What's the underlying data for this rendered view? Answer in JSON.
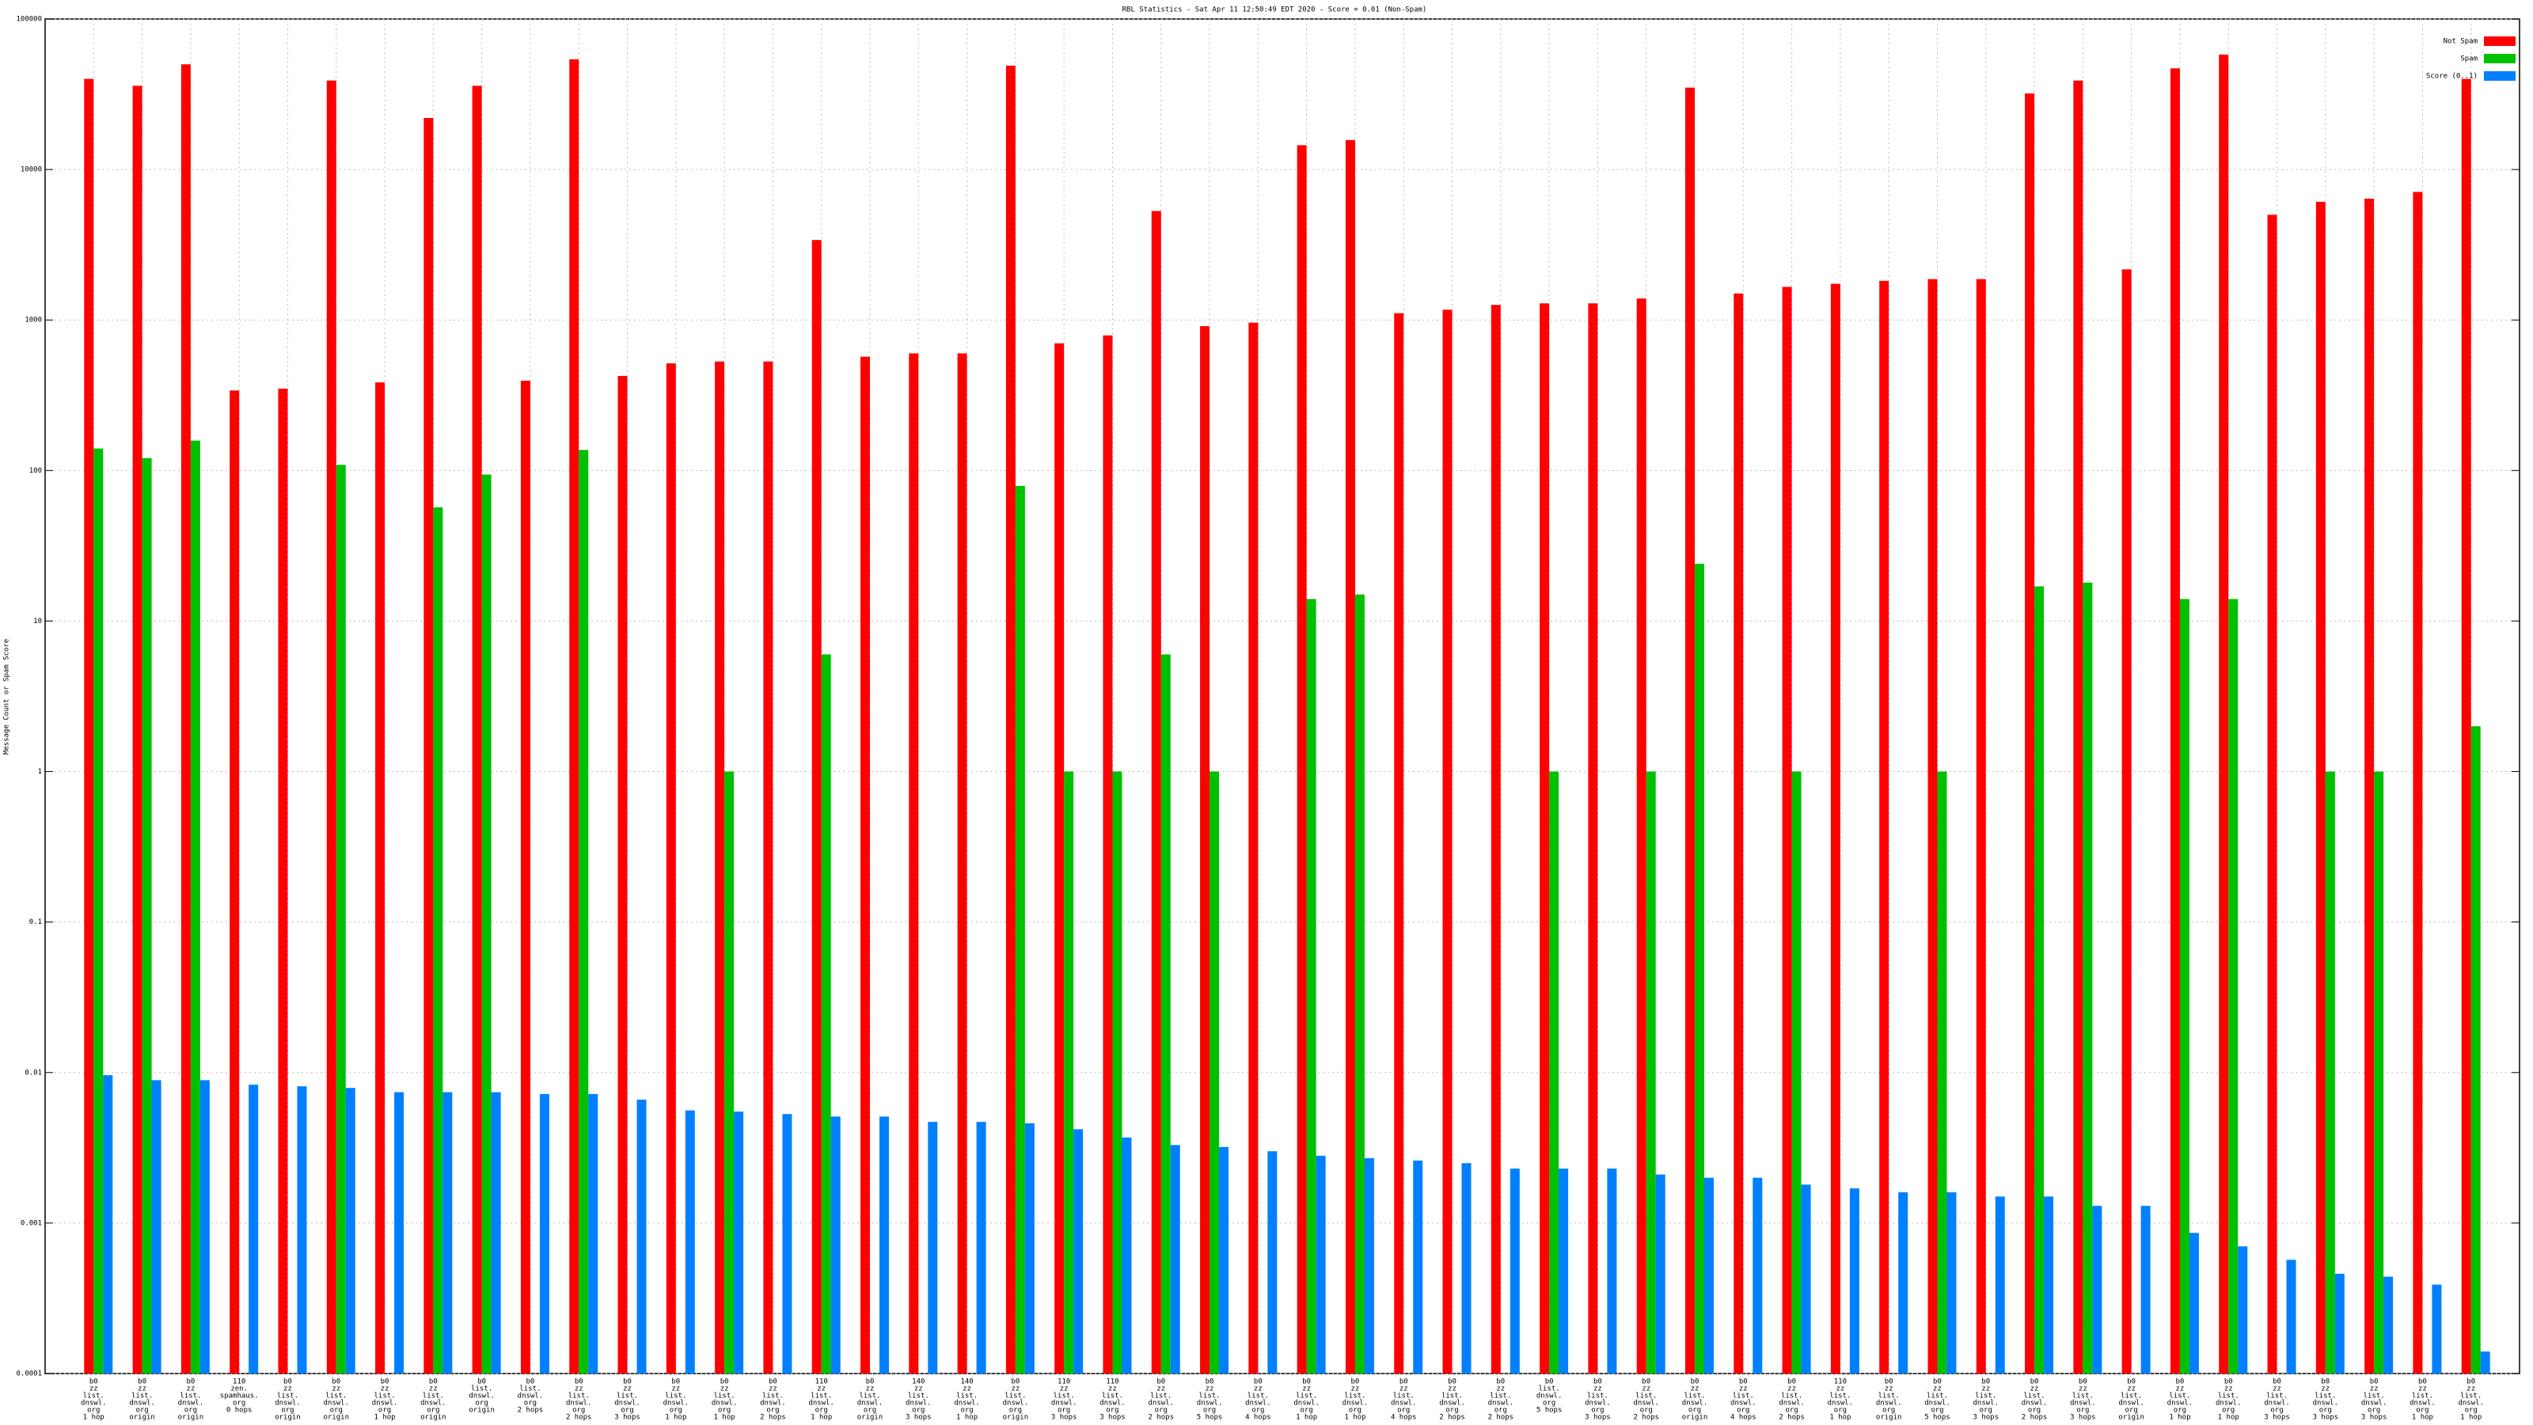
{
  "chart_data": {
    "type": "bar",
    "title": "RBL Statistics - Sat Apr 11 12:50:49 EDT 2020 - Score = 0.01 (Non-Spam)",
    "y_label": "Message Count or Spam Score",
    "log_scale": true,
    "grid": true,
    "legend": "top-right",
    "ylim": [
      0.0001,
      100000
    ],
    "yticks": [
      0.0001,
      0.001,
      0.01,
      0.1,
      1,
      10,
      100,
      1000,
      10000,
      100000
    ],
    "categories": [
      [
        "b0",
        "zz",
        "list.",
        "dnswl.",
        "org",
        "1 hop"
      ],
      [
        "b0",
        "zz",
        "list.",
        "dnswl.",
        "org",
        "origin"
      ],
      [
        "b0",
        "zz",
        "list.",
        "dnswl.",
        "org",
        "origin"
      ],
      [
        "110",
        "zen.",
        "spamhaus.",
        "org",
        "0 hops"
      ],
      [
        "b0",
        "zz",
        "list.",
        "dnswl.",
        "org",
        "origin"
      ],
      [
        "b0",
        "zz",
        "list.",
        "dnswl.",
        "org",
        "origin"
      ],
      [
        "b0",
        "zz",
        "list.",
        "dnswl.",
        "org",
        "1 hop"
      ],
      [
        "b0",
        "zz",
        "list.",
        "dnswl.",
        "org",
        "origin"
      ],
      [
        "b0",
        "list.",
        "dnswl.",
        "org",
        "origin"
      ],
      [
        "b0",
        "list.",
        "dnswl.",
        "org",
        "2 hops"
      ],
      [
        "b0",
        "zz",
        "list.",
        "dnswl.",
        "org",
        "2 hops"
      ],
      [
        "b0",
        "zz",
        "list.",
        "dnswl.",
        "org",
        "3 hops"
      ],
      [
        "b0",
        "zz",
        "list.",
        "dnswl.",
        "org",
        "1 hop"
      ],
      [
        "b0",
        "zz",
        "list.",
        "dnswl.",
        "org",
        "1 hop"
      ],
      [
        "b0",
        "zz",
        "list.",
        "dnswl.",
        "org",
        "2 hops"
      ],
      [
        "110",
        "zz",
        "list.",
        "dnswl.",
        "org",
        "1 hop"
      ],
      [
        "b0",
        "zz",
        "list.",
        "dnswl.",
        "org",
        "origin"
      ],
      [
        "140",
        "zz",
        "list.",
        "dnswl.",
        "org",
        "3 hops"
      ],
      [
        "140",
        "zz",
        "list.",
        "dnswl.",
        "org",
        "1 hop"
      ],
      [
        "b0",
        "zz",
        "list.",
        "dnswl.",
        "org",
        "origin"
      ],
      [
        "110",
        "zz",
        "list.",
        "dnswl.",
        "org",
        "3 hops"
      ],
      [
        "110",
        "zz",
        "list.",
        "dnswl.",
        "org",
        "3 hops"
      ],
      [
        "b0",
        "zz",
        "list.",
        "dnswl.",
        "org",
        "2 hops"
      ],
      [
        "b0",
        "zz",
        "list.",
        "dnswl.",
        "org",
        "5 hops"
      ],
      [
        "b0",
        "zz",
        "list.",
        "dnswl.",
        "org",
        "4 hops"
      ],
      [
        "b0",
        "zz",
        "list.",
        "dnswl.",
        "org",
        "1 hop"
      ],
      [
        "b0",
        "zz",
        "list.",
        "dnswl.",
        "org",
        "1 hop"
      ],
      [
        "b0",
        "zz",
        "list.",
        "dnswl.",
        "org",
        "4 hops"
      ],
      [
        "b0",
        "zz",
        "list.",
        "dnswl.",
        "org",
        "2 hops"
      ],
      [
        "b0",
        "zz",
        "list.",
        "dnswl.",
        "org",
        "2 hops"
      ],
      [
        "b0",
        "list.",
        "dnswl.",
        "org",
        "5 hops"
      ],
      [
        "b0",
        "zz",
        "list.",
        "dnswl.",
        "org",
        "3 hops"
      ],
      [
        "b0",
        "zz",
        "list.",
        "dnswl.",
        "org",
        "2 hops"
      ],
      [
        "b0",
        "zz",
        "list.",
        "dnswl.",
        "org",
        "origin"
      ],
      [
        "b0",
        "zz",
        "list.",
        "dnswl.",
        "org",
        "4 hops"
      ],
      [
        "b0",
        "zz",
        "list.",
        "dnswl.",
        "org",
        "2 hops"
      ],
      [
        "110",
        "zz",
        "list.",
        "dnswl.",
        "org",
        "1 hop"
      ],
      [
        "b0",
        "zz",
        "list.",
        "dnswl.",
        "org",
        "origin"
      ],
      [
        "b0",
        "zz",
        "list.",
        "dnswl.",
        "org",
        "5 hops"
      ],
      [
        "b0",
        "zz",
        "list.",
        "dnswl.",
        "org",
        "3 hops"
      ],
      [
        "b0",
        "zz",
        "list.",
        "dnswl.",
        "org",
        "2 hops"
      ],
      [
        "b0",
        "zz",
        "list.",
        "dnswl.",
        "org",
        "3 hops"
      ],
      [
        "b0",
        "zz",
        "list.",
        "dnswl.",
        "org",
        "origin"
      ],
      [
        "b0",
        "zz",
        "list.",
        "dnswl.",
        "org",
        "1 hop"
      ],
      [
        "b0",
        "zz",
        "list.",
        "dnswl.",
        "org",
        "1 hop"
      ],
      [
        "b0",
        "zz",
        "list.",
        "dnswl.",
        "org",
        "3 hops"
      ],
      [
        "b0",
        "zz",
        "list.",
        "dnswl.",
        "org",
        "3 hops"
      ],
      [
        "b0",
        "zz",
        "list.",
        "dnswl.",
        "org",
        "3 hops"
      ],
      [
        "b0",
        "zz",
        "list.",
        "dnswl.",
        "org",
        "1 hop"
      ],
      [
        "b0",
        "zz",
        "list.",
        "dnswl.",
        "org",
        "1 hop"
      ]
    ],
    "series": [
      {
        "name": "Not Spam",
        "color": "#ff0000",
        "values": [
          40000,
          36000,
          50000,
          340,
          350,
          39000,
          385,
          22000,
          36000,
          395,
          54000,
          425,
          515,
          530,
          530,
          3400,
          570,
          600,
          600,
          49000,
          700,
          790,
          5300,
          910,
          960,
          14500,
          15700,
          1110,
          1170,
          1260,
          1290,
          1290,
          1390,
          35000,
          1500,
          1660,
          1740,
          1820,
          1870,
          1870,
          32000,
          39000,
          2170,
          47000,
          58000,
          5000,
          6100,
          6400,
          7100,
          40000
        ]
      },
      {
        "name": "Spam",
        "color": "#00c000",
        "values": [
          140,
          121,
          158,
          null,
          null,
          109,
          null,
          57,
          94,
          null,
          137,
          null,
          null,
          1,
          null,
          6,
          null,
          null,
          null,
          79,
          1,
          1,
          6,
          1,
          null,
          14,
          15,
          null,
          null,
          null,
          1,
          null,
          1,
          24,
          null,
          1,
          null,
          null,
          1,
          null,
          17,
          18,
          null,
          14,
          14,
          null,
          1,
          1,
          null,
          2
        ]
      },
      {
        "name": "Score (0..1)",
        "color": "#0080ff",
        "values": [
          0.0096,
          0.0089,
          0.0089,
          0.0083,
          0.0081,
          0.0079,
          0.0074,
          0.0074,
          0.0074,
          0.0072,
          0.0072,
          0.0066,
          0.0056,
          0.0055,
          0.0053,
          0.0051,
          0.0051,
          0.0047,
          0.0047,
          0.0046,
          0.0042,
          0.0037,
          0.0033,
          0.0032,
          0.003,
          0.0028,
          0.0027,
          0.0026,
          0.0025,
          0.0023,
          0.0023,
          0.0023,
          0.0021,
          0.002,
          0.002,
          0.0018,
          0.0017,
          0.0016,
          0.0016,
          0.0015,
          0.0015,
          0.0013,
          0.0013,
          0.00086,
          0.0007,
          0.00057,
          0.00046,
          0.00044,
          0.00039,
          0.00014
        ]
      }
    ]
  }
}
